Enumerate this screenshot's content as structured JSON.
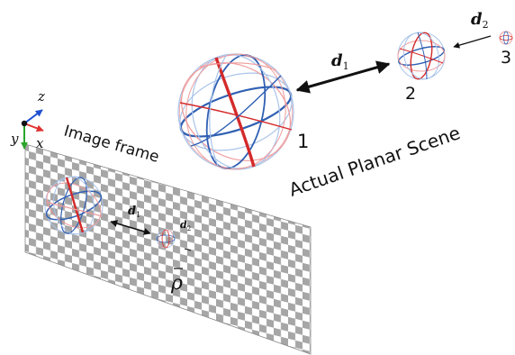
{
  "labels": {
    "axis_z": "z",
    "axis_y": "y",
    "axis_x": "x",
    "image_frame": "Image frame",
    "actual_scene": "Actual Planar Scene",
    "d1_scene": "d",
    "d1_sub": "1",
    "d2_scene": "d",
    "d2_sub": "2",
    "d1_image": "d",
    "d1_image_sub": "1",
    "d2_image": "d",
    "d2_image_sub": "2",
    "rho": "ρ",
    "sphere_1": "1",
    "sphere_2": "2",
    "sphere_3": "3"
  },
  "colors": {
    "blue": "#2f5fb3",
    "red": "#d42a2a",
    "light_blue": "#a9c4ea",
    "light_red": "#ef9c9c",
    "axis_red": "#e03030",
    "axis_green": "#2aa52a",
    "axis_blue": "#1f4fd0",
    "checker_dark": "#a6a6a6",
    "checker_light": "#ffffff"
  }
}
